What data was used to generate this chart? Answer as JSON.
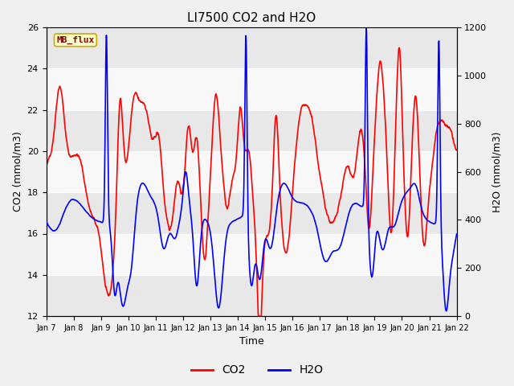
{
  "title": "LI7500 CO2 and H2O",
  "xlabel": "Time",
  "ylabel_left": "CO2 (mmol/m3)",
  "ylabel_right": "H2O (mmol/m3)",
  "ylim_left": [
    12,
    26
  ],
  "ylim_right": [
    0,
    1200
  ],
  "co2_color": "#FF0000",
  "h2o_color": "#0000FF",
  "fig_facecolor": "#F0F0F0",
  "plot_facecolor": "#FFFFFF",
  "band_colors": [
    "#E8E8E8",
    "#F8F8F8"
  ],
  "xtick_labels": [
    "Jan 7",
    "Jan 8",
    "Jan 9",
    "Jan 10",
    "Jan 11",
    "Jan 12",
    "Jan 13",
    "Jan 14",
    "Jan 15",
    "Jan 16",
    "Jan 17",
    "Jan 18",
    "Jan 19",
    "Jan 20",
    "Jan 21",
    "Jan 22"
  ],
  "mb_flux_label": "MB_flux",
  "mb_flux_bg": "#FFFFCC",
  "mb_flux_border": "#CCAA00",
  "mb_flux_text_color": "#880000",
  "legend_labels": [
    "CO2",
    "H2O"
  ],
  "title_fontsize": 11,
  "axis_label_fontsize": 9,
  "tick_fontsize": 8,
  "legend_fontsize": 10,
  "line_width": 1.2,
  "seed": 42,
  "n_days": 15,
  "n_per_day": 96
}
